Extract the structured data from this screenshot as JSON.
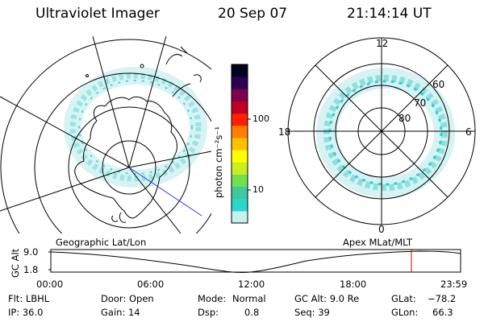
{
  "header": {
    "instrument": "Ultraviolet Imager",
    "date": "20 Sep 07",
    "time": "21:14:14 UT"
  },
  "colorbar": {
    "unit_label": "photon cm⁻²s⁻¹",
    "ticks": [
      "100",
      "10"
    ],
    "colors": [
      "#c8f0f0",
      "#28d8c8",
      "#40c8a0",
      "#70e050",
      "#c8f020",
      "#ffff00",
      "#ffc000",
      "#ff8000",
      "#ff2000",
      "#c00020",
      "#800050",
      "#300050",
      "#000020"
    ]
  },
  "left_map": {
    "label": "Geographic Lat/Lon"
  },
  "right_map": {
    "label": "Apex MLat/MLT",
    "mlt_labels": {
      "top": "12",
      "left": "18",
      "right": "6",
      "bottom": "0"
    },
    "mlat_labels": [
      "60",
      "70",
      "80"
    ]
  },
  "timeline": {
    "axis_label": "GC Alt",
    "ylabels": [
      "9.0",
      "1.8"
    ],
    "xlabels": [
      "00:00",
      "06:00",
      "12:00",
      "18:00",
      "23:59"
    ],
    "current_time_color": "#cc0000"
  },
  "footer": {
    "row1": {
      "flt": "Flt: LBHL",
      "door": "Door: Open",
      "mode_label": "Mode:",
      "mode_value": "Normal",
      "gc_alt": "GC Alt: 9.0 Re",
      "glat_label": "GLat:",
      "glat_value": "−78.2"
    },
    "row2": {
      "ip": "IP: 36.0",
      "gain": "Gain: 14",
      "dsp_label": "Dsp:",
      "dsp_value": "0.8",
      "seq": "Seq: 39",
      "glon_label": "GLon:",
      "glon_value": "66.3"
    }
  }
}
